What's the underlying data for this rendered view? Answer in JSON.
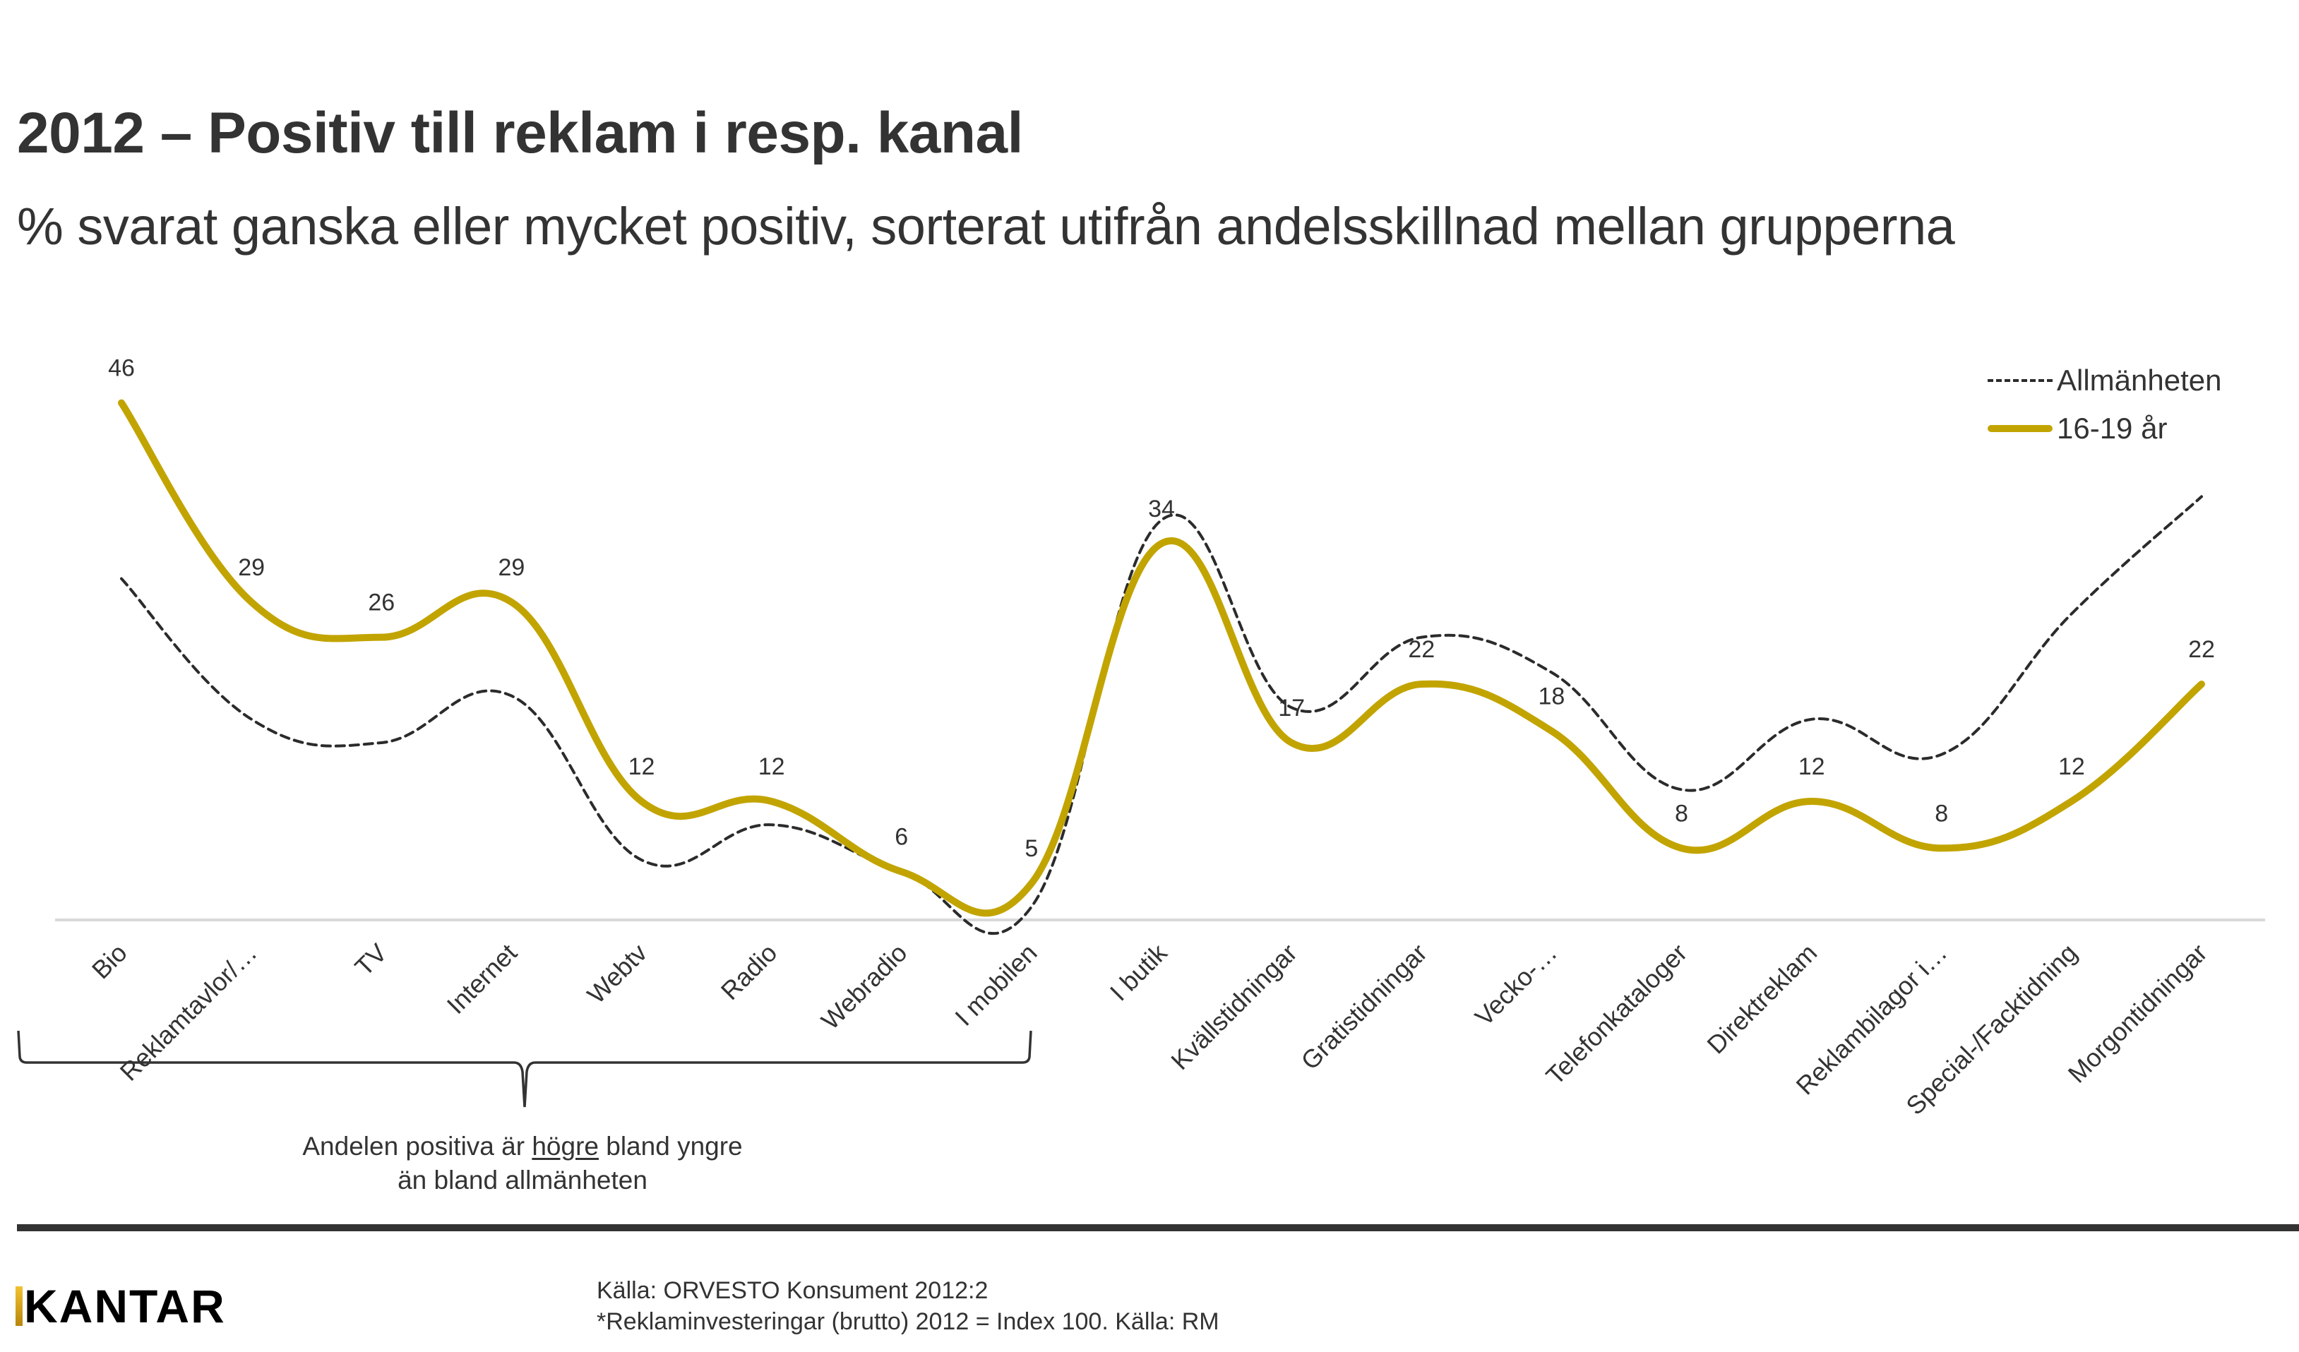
{
  "header": {
    "title": "2012 – Positiv till reklam i resp. kanal",
    "subtitle": "% svarat ganska eller mycket positiv, sorterat utifrån andelsskillnad mellan grupperna"
  },
  "chart_data": {
    "type": "line",
    "title": "2012 – Positiv till reklam i resp. kanal",
    "subtitle": "% svarat ganska eller mycket positiv, sorterat utifrån andelsskillnad mellan grupperna",
    "xlabel": "",
    "ylabel": "",
    "categories": [
      "Bio",
      "Reklamtavlor/…",
      "TV",
      "Internet",
      "Webtv",
      "Radio",
      "Webradio",
      "I mobilen",
      "I butik",
      "Kvällstidningar",
      "Gratistidningar",
      "Vecko-…",
      "Telefonkataloger",
      "Direktreklam",
      "Reklambilagor i…",
      "Special-/Facktidning",
      "Morgontidningar"
    ],
    "series": [
      {
        "name": "Allmänheten",
        "style": "dashed",
        "color": "#2b2b2b",
        "values": [
          31,
          19,
          17,
          21,
          7,
          10,
          6,
          3,
          36,
          20,
          26,
          23,
          13,
          19,
          16,
          28,
          38
        ],
        "labels_shown": false
      },
      {
        "name": "16-19 år",
        "style": "solid",
        "color": "#c2a400",
        "values": [
          46,
          29,
          26,
          29,
          12,
          12,
          6,
          5,
          34,
          17,
          22,
          18,
          8,
          12,
          8,
          12,
          22
        ],
        "labels_shown": true
      }
    ],
    "ylim": [
      2,
      48
    ],
    "grid": false,
    "smooth": true,
    "legend": "top-right",
    "annotations": [
      {
        "type": "brace",
        "span": [
          "Bio",
          "I mobilen"
        ],
        "text_before": "Andelen positiva är ",
        "text_underlined": "högre",
        "text_after": " bland yngre",
        "text_line2": "än bland allmänheten"
      }
    ]
  },
  "legend": {
    "items": [
      {
        "label": "Allmänheten"
      },
      {
        "label": "16-19 år"
      }
    ]
  },
  "annotation": {
    "before": "Andelen positiva är ",
    "underlined": "högre",
    "after": " bland yngre",
    "line2": "än bland allmänheten"
  },
  "footer": {
    "logo": "KANTAR",
    "source_line1": "Källa: ORVESTO Konsument 2012:2",
    "source_line2": "*Reklaminvesteringar (brutto) 2012 = Index 100. Källa: RM"
  },
  "colors": {
    "accent_gold": "#c2a400",
    "text": "#333333",
    "dashed_line": "#2b2b2b"
  }
}
